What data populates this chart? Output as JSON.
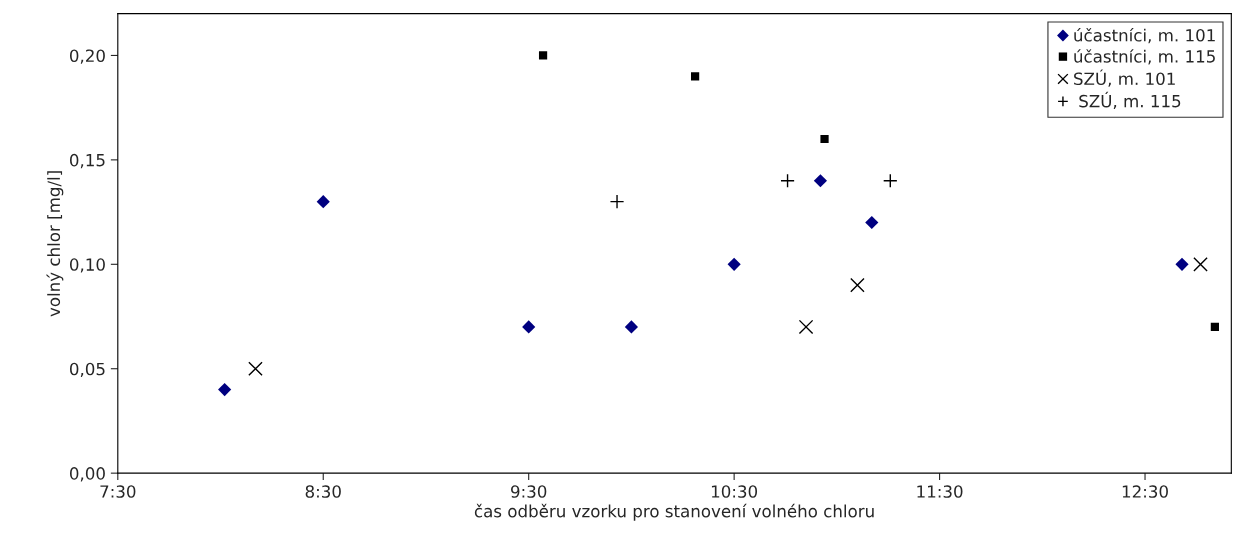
{
  "chart_data": {
    "type": "scatter",
    "xlabel": "čas odběru vzorku pro stanovení volného chloru",
    "ylabel": "volný chlor [mg/l]",
    "xlim": [
      7.5,
      12.92
    ],
    "xticks": [
      {
        "value": 7.5,
        "label": "7:30"
      },
      {
        "value": 8.5,
        "label": "8:30"
      },
      {
        "value": 9.5,
        "label": "9:30"
      },
      {
        "value": 10.5,
        "label": "10:30"
      },
      {
        "value": 11.5,
        "label": "11:30"
      },
      {
        "value": 12.5,
        "label": "12:30"
      }
    ],
    "ylim": [
      0,
      0.22
    ],
    "yticks": [
      {
        "value": 0,
        "label": "0,00"
      },
      {
        "value": 0.05,
        "label": "0,05"
      },
      {
        "value": 0.1,
        "label": "0,10"
      },
      {
        "value": 0.15,
        "label": "0,15"
      },
      {
        "value": 0.2,
        "label": "0,20"
      }
    ],
    "grid": false,
    "legend": "top right",
    "series": [
      {
        "name": "účastníci, m. 101",
        "color": "#000080",
        "marker": "diamond",
        "x": [
          8.02,
          8.5,
          9.5,
          10.0,
          10.5,
          10.92,
          11.17,
          12.68
        ],
        "values": [
          0.04,
          0.13,
          0.07,
          0.07,
          0.1,
          0.14,
          0.12,
          0.1
        ]
      },
      {
        "name": "účastníci, m. 115",
        "color": "#000000",
        "marker": "square",
        "x": [
          9.57,
          10.31,
          10.94,
          12.84
        ],
        "values": [
          0.2,
          0.19,
          0.16,
          0.07
        ]
      },
      {
        "name": "SZÚ, m. 101",
        "color": "#000000",
        "marker": "cross",
        "x": [
          8.17,
          10.85,
          11.1,
          12.77
        ],
        "values": [
          0.05,
          0.07,
          0.09,
          0.1
        ]
      },
      {
        "name": " SZÚ, m. 115",
        "color": "#000000",
        "marker": "plus",
        "x": [
          9.93,
          10.76,
          11.26
        ],
        "values": [
          0.13,
          0.14,
          0.14
        ]
      }
    ]
  }
}
